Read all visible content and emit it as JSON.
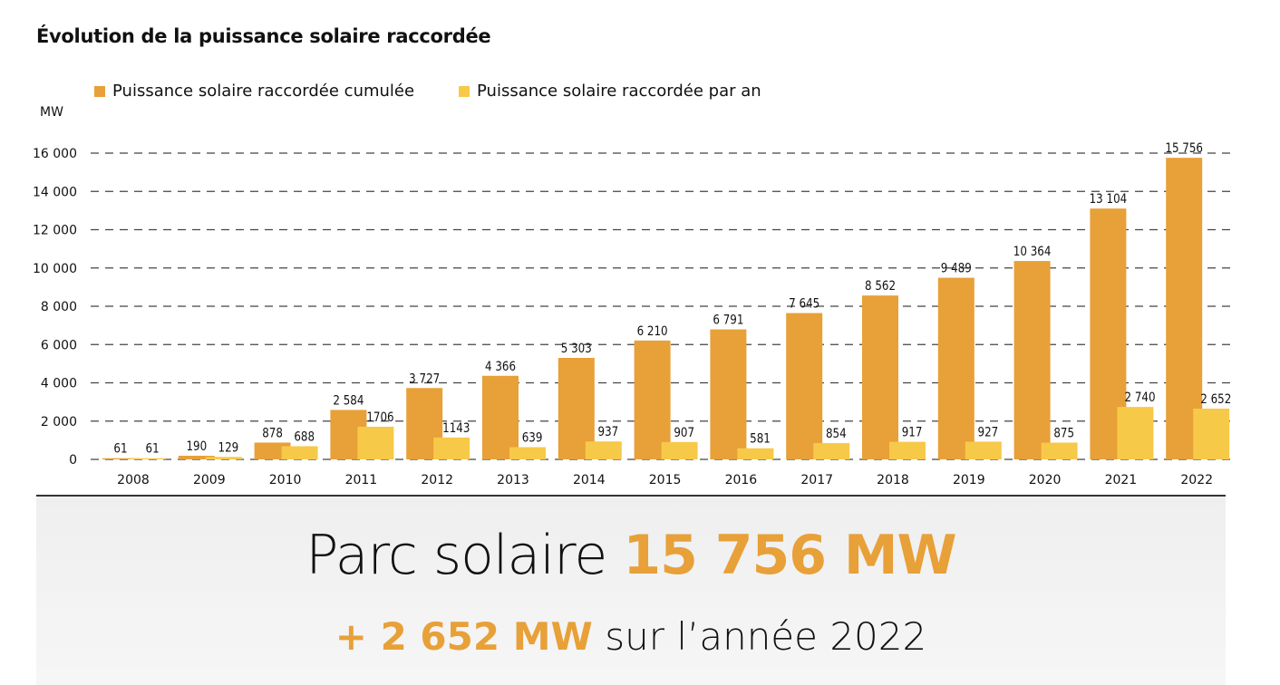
{
  "chart_data": {
    "type": "bar",
    "title": "Évolution de la puissance solaire raccordée",
    "ylabel": "MW",
    "ylim": [
      0,
      16000
    ],
    "yticks": [
      "0",
      "2 000",
      "4 000",
      "6 000",
      "8 000",
      "10 000",
      "12 000",
      "14 000",
      "16 000"
    ],
    "grid": true,
    "legend_position": "top-left",
    "categories": [
      "2008",
      "2009",
      "2010",
      "2011",
      "2012",
      "2013",
      "2014",
      "2015",
      "2016",
      "2017",
      "2018",
      "2019",
      "2020",
      "2021",
      "2022"
    ],
    "series": [
      {
        "name": "Puissance solaire raccordée cumulée",
        "color": "#E8A038",
        "values": [
          61,
          190,
          878,
          2584,
          3727,
          4366,
          5303,
          6210,
          6791,
          7645,
          8562,
          9489,
          10364,
          13104,
          15756
        ],
        "labels": [
          "61",
          "190",
          "878",
          "2 584",
          "3 727",
          "4 366",
          "5 303",
          "6 210",
          "6 791",
          "7 645",
          "8 562",
          "9 489",
          "10 364",
          "13 104",
          "15 756"
        ]
      },
      {
        "name": "Puissance solaire raccordée par an",
        "color": "#F7C948",
        "values": [
          61,
          129,
          688,
          1706,
          1143,
          639,
          937,
          907,
          581,
          854,
          917,
          927,
          875,
          2740,
          2652
        ],
        "labels": [
          "61",
          "129",
          "688",
          "1706",
          "1143",
          "639",
          "937",
          "907",
          "581",
          "854",
          "917",
          "927",
          "875",
          "2 740",
          "2 652"
        ]
      }
    ]
  },
  "summary": {
    "line1_text": "Parc solaire ",
    "line1_value": "15 756 MW",
    "line2_value": "+ 2 652 MW",
    "line2_text": " sur l’année 2022"
  }
}
